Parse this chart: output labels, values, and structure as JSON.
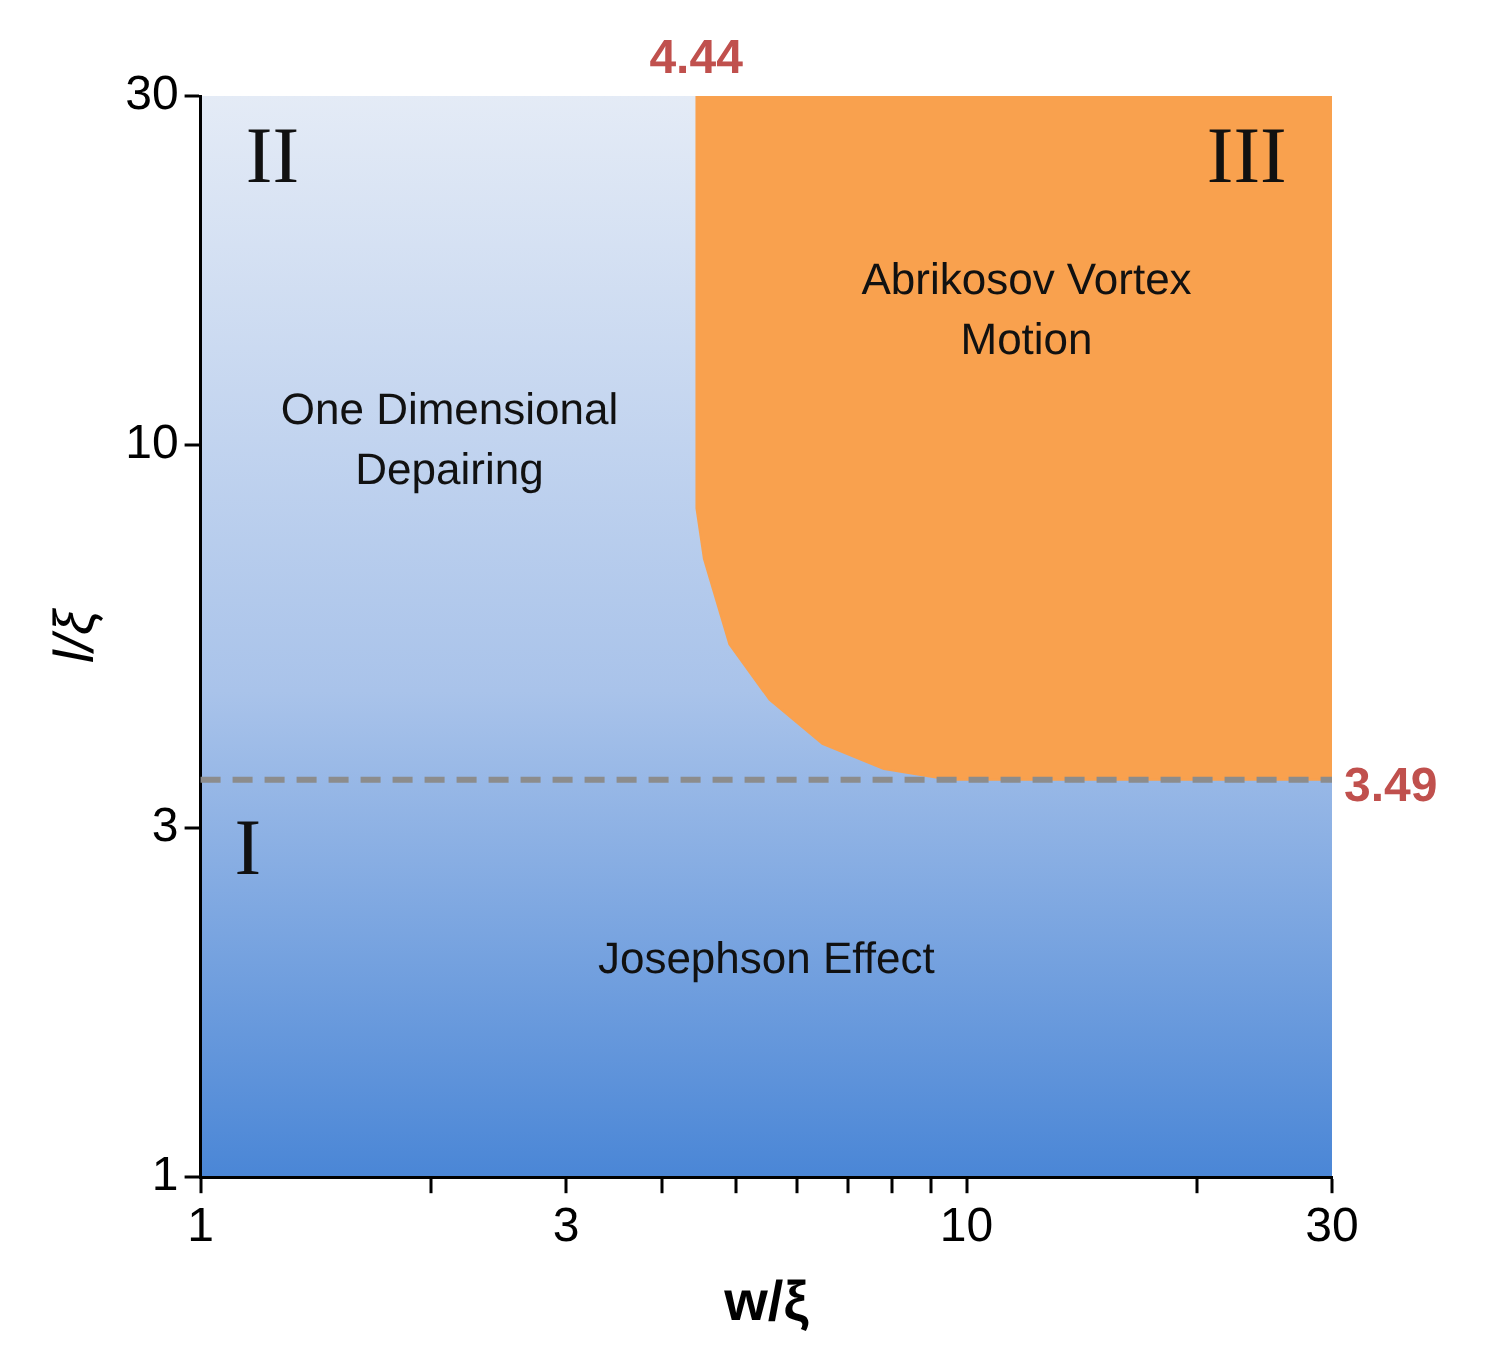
{
  "chart_data": {
    "type": "area",
    "xlabel": "w/ξ",
    "ylabel": "l/ξ",
    "log": "xy",
    "grid": false,
    "xlim": [
      1,
      30
    ],
    "ylim": [
      1,
      30
    ],
    "xticks": [
      1,
      {
        "value": 2,
        "label": null
      },
      3,
      {
        "value": 4,
        "label": null
      },
      {
        "value": 5,
        "label": null
      },
      {
        "value": 6,
        "label": null
      },
      {
        "value": 7,
        "label": null
      },
      {
        "value": 8,
        "label": null
      },
      {
        "value": 9,
        "label": null
      },
      10,
      {
        "value": 20,
        "label": null
      },
      30
    ],
    "yticks": [
      1,
      3,
      10,
      30
    ],
    "series": [
      {
        "color": "#f9a14e",
        "x": [
          4.44,
          4.44,
          4.54,
          4.9,
          5.53,
          6.48,
          7.8,
          9.5,
          30,
          30
        ],
        "values": [
          30,
          8.2,
          7.0,
          5.35,
          4.49,
          3.91,
          3.61,
          3.49,
          3.49,
          30
        ]
      }
    ],
    "ref_lines": [
      {
        "axis": "y",
        "value": 3.49,
        "label": "3.49",
        "color": "#8c8c8c",
        "line_style": "dashed"
      }
    ],
    "annotations": [
      "II",
      "III",
      "I",
      "One Dimensional Depairing",
      "Abrikosov Vortex Motion",
      "Josephson Effect",
      "4.44"
    ]
  }
}
